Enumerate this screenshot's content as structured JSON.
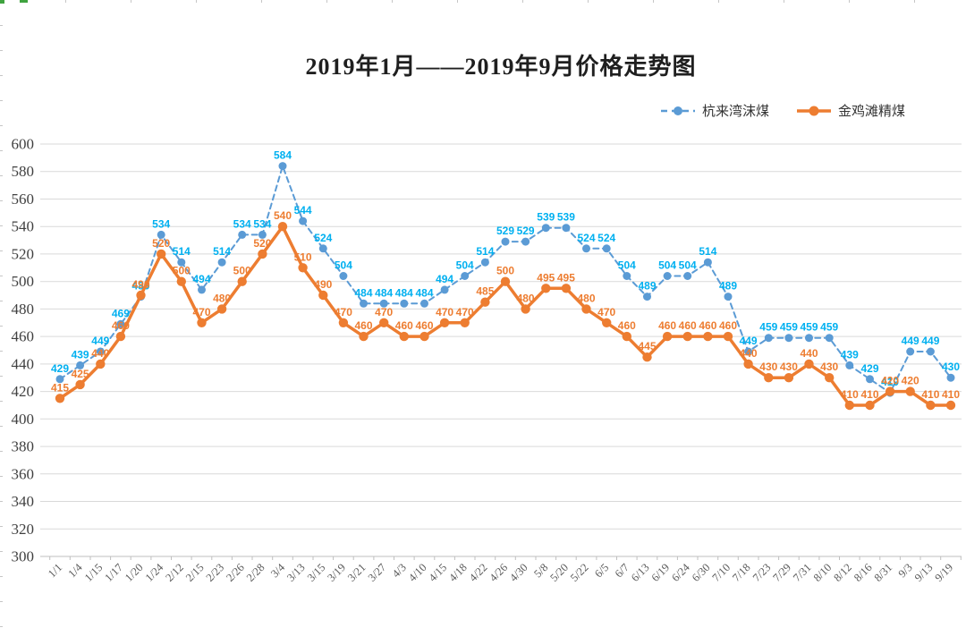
{
  "title": "2019年1月——2019年9月价格走势图",
  "legend": {
    "items": [
      {
        "label": "杭来湾沫煤",
        "color": "#5b9bd5",
        "style": "dashed"
      },
      {
        "label": "金鸡滩精煤",
        "color": "#ed7d31",
        "style": "solid"
      }
    ]
  },
  "chart_data": {
    "type": "line",
    "title": "2019年1月——2019年9月价格走势图",
    "categories": [
      "1/1",
      "1/4",
      "1/15",
      "1/17",
      "1/20",
      "1/24",
      "2/12",
      "2/15",
      "2/23",
      "2/26",
      "2/28",
      "3/4",
      "3/13",
      "3/15",
      "3/19",
      "3/21",
      "3/27",
      "4/3",
      "4/10",
      "4/15",
      "4/18",
      "4/22",
      "4/26",
      "4/30",
      "5/8",
      "5/20",
      "5/22",
      "6/5",
      "6/7",
      "6/13",
      "6/19",
      "6/24",
      "6/30",
      "7/10",
      "7/18",
      "7/23",
      "7/29",
      "7/31",
      "8/10",
      "8/12",
      "8/16",
      "8/31",
      "9/3",
      "9/13",
      "9/19"
    ],
    "series": [
      {
        "name": "杭来湾沫煤",
        "color": "#5b9bd5",
        "label_color": "#00b0f0",
        "line_style": "dashed",
        "values": [
          429,
          439,
          449,
          469,
          489,
          534,
          514,
          494,
          514,
          534,
          534,
          584,
          544,
          524,
          504,
          484,
          484,
          484,
          484,
          494,
          504,
          514,
          529,
          529,
          539,
          539,
          524,
          524,
          504,
          489,
          504,
          504,
          514,
          489,
          449,
          459,
          459,
          459,
          459,
          439,
          429,
          419,
          449,
          449,
          430
        ]
      },
      {
        "name": "金鸡滩精煤",
        "color": "#ed7d31",
        "label_color": "#ed7d31",
        "line_style": "solid",
        "values": [
          415,
          425,
          440,
          460,
          490,
          520,
          500,
          470,
          480,
          500,
          520,
          540,
          510,
          490,
          470,
          460,
          470,
          460,
          460,
          470,
          470,
          485,
          500,
          480,
          495,
          495,
          480,
          470,
          460,
          445,
          460,
          460,
          460,
          460,
          440,
          430,
          430,
          440,
          430,
          410,
          410,
          420,
          420,
          410,
          410
        ]
      }
    ],
    "ylim": [
      300,
      600
    ],
    "ytick_step": 20,
    "yticks": [
      300,
      320,
      340,
      360,
      380,
      400,
      420,
      440,
      460,
      480,
      500,
      520,
      540,
      560,
      580,
      600
    ],
    "grid": true,
    "legend_position": "top-right",
    "colors": {
      "gridline": "#d9d9d9",
      "axis_line": "#bfbfbf",
      "y_tick_text": "#404040",
      "x_tick_text": "#595959"
    }
  }
}
